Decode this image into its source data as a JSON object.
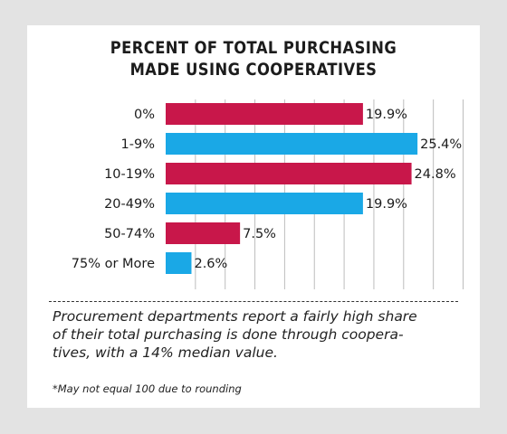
{
  "chart_data": {
    "type": "bar",
    "orientation": "horizontal",
    "title_lines": [
      "PERCENT OF TOTAL PURCHASING",
      "MADE USING COOPERATIVES"
    ],
    "categories": [
      "0%",
      "1-9%",
      "10-19%",
      "20-49%",
      "50-74%",
      "75% or More"
    ],
    "values": [
      19.9,
      25.4,
      24.8,
      19.9,
      7.5,
      2.6
    ],
    "value_labels": [
      "19.9%",
      "25.4%",
      "24.8%",
      "19.9%",
      "7.5%",
      "2.6%"
    ],
    "bar_colors": [
      "#c8174a",
      "#1aa8e6",
      "#c8174a",
      "#1aa8e6",
      "#c8174a",
      "#1aa8e6"
    ],
    "xlim": [
      0,
      30
    ],
    "gridlines": true,
    "grid_color": "#bdbdbd"
  },
  "caption_lines": [
    "Procurement departments report a fairly high share",
    "of their total purchasing is done through coopera-",
    "tives, with a 14% median value."
  ],
  "footnote": "*May not equal 100 due to rounding"
}
